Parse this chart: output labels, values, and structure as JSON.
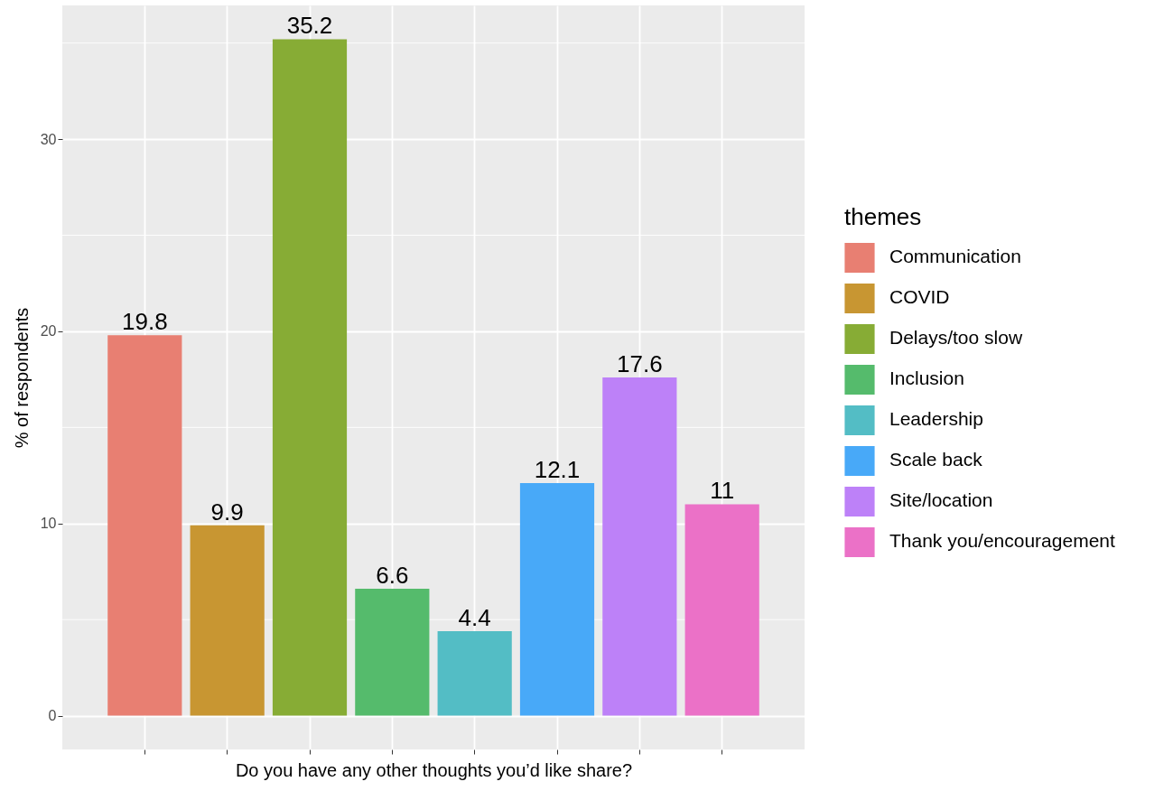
{
  "chart_data": {
    "type": "bar",
    "xlabel": "Do you have any other thoughts you’d like share?",
    "ylabel": "% of respondents",
    "legend_title": "themes",
    "categories": [
      null,
      null,
      null,
      null,
      null,
      null,
      null,
      null
    ],
    "stacked": true,
    "series": [
      {
        "name": "Communication",
        "color": "#e87f72",
        "values": [
          19.8,
          null,
          null,
          null,
          null,
          null,
          null,
          null
        ]
      },
      {
        "name": "COVID",
        "color": "#c89632",
        "values": [
          null,
          9.9,
          null,
          null,
          null,
          null,
          null,
          null
        ]
      },
      {
        "name": "Delays/too slow",
        "color": "#87ac35",
        "values": [
          null,
          null,
          35.2,
          null,
          null,
          null,
          null,
          null
        ]
      },
      {
        "name": "Inclusion",
        "color": "#55bb6c",
        "values": [
          null,
          null,
          null,
          6.6,
          null,
          null,
          null,
          null
        ]
      },
      {
        "name": "Leadership",
        "color": "#53bdc5",
        "values": [
          null,
          null,
          null,
          null,
          4.4,
          null,
          null,
          null
        ]
      },
      {
        "name": "Scale back",
        "color": "#48a9f8",
        "values": [
          null,
          null,
          null,
          null,
          null,
          12.1,
          null,
          null
        ]
      },
      {
        "name": "Site/location",
        "color": "#bd81f8",
        "values": [
          null,
          null,
          null,
          null,
          null,
          null,
          17.6,
          null
        ]
      },
      {
        "name": "Thank you/encouragement",
        "color": "#eb71c7",
        "values": [
          null,
          null,
          null,
          null,
          null,
          null,
          null,
          11
        ]
      }
    ],
    "ylim": [
      -1.76,
      36.96
    ],
    "yticks": [
      0,
      10,
      20,
      30
    ],
    "grid": true,
    "legend": "right",
    "data_labels": true
  }
}
